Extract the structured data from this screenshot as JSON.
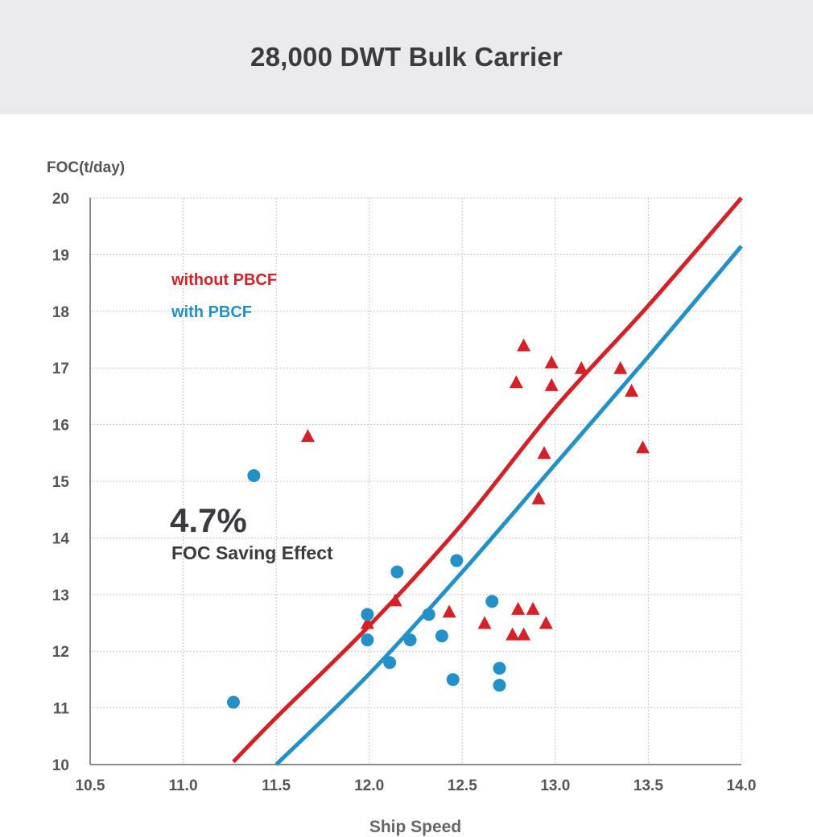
{
  "title": "28,000 DWT Bulk Carrier",
  "chart_data": {
    "type": "scatter",
    "title": "28,000 DWT Bulk Carrier",
    "xlabel": "Ship Speed",
    "ylabel": "FOC(t/day)",
    "xlim": [
      10.5,
      14.0
    ],
    "ylim": [
      10,
      20
    ],
    "x_ticks": [
      "10.5",
      "11.0",
      "11.5",
      "12.0",
      "12.5",
      "13.0",
      "13.5",
      "14.0"
    ],
    "y_ticks": [
      "10",
      "11",
      "12",
      "13",
      "14",
      "15",
      "16",
      "17",
      "18",
      "19",
      "20"
    ],
    "grid": true,
    "legend_position": "top-left",
    "series": [
      {
        "name": "without PBCF",
        "color": "#d42027",
        "marker": "triangle",
        "points": [
          [
            11.67,
            15.8
          ],
          [
            11.99,
            12.5
          ],
          [
            12.14,
            12.9
          ],
          [
            12.43,
            12.7
          ],
          [
            12.62,
            12.5
          ],
          [
            12.77,
            12.3
          ],
          [
            12.79,
            16.75
          ],
          [
            12.8,
            12.75
          ],
          [
            12.83,
            12.3
          ],
          [
            12.83,
            17.4
          ],
          [
            12.88,
            12.75
          ],
          [
            12.91,
            14.7
          ],
          [
            12.94,
            15.5
          ],
          [
            12.95,
            12.5
          ],
          [
            12.98,
            17.1
          ],
          [
            12.98,
            16.7
          ],
          [
            13.14,
            17.0
          ],
          [
            13.35,
            17.0
          ],
          [
            13.41,
            16.6
          ],
          [
            13.47,
            15.6
          ]
        ],
        "fit_curve": [
          [
            11.27,
            10.05
          ],
          [
            11.5,
            10.83
          ],
          [
            12.0,
            12.45
          ],
          [
            12.5,
            14.25
          ],
          [
            13.0,
            16.3
          ],
          [
            13.5,
            18.1
          ],
          [
            14.0,
            20.0
          ]
        ]
      },
      {
        "name": "with PBCF",
        "color": "#2590c8",
        "marker": "circle",
        "points": [
          [
            11.27,
            11.1
          ],
          [
            11.38,
            15.1
          ],
          [
            11.99,
            12.65
          ],
          [
            11.99,
            12.2
          ],
          [
            12.11,
            11.8
          ],
          [
            12.15,
            13.4
          ],
          [
            12.22,
            12.2
          ],
          [
            12.32,
            12.65
          ],
          [
            12.39,
            12.27
          ],
          [
            12.45,
            11.5
          ],
          [
            12.47,
            13.6
          ],
          [
            12.66,
            12.88
          ],
          [
            12.7,
            11.7
          ],
          [
            12.7,
            11.4
          ]
        ],
        "fit_curve": [
          [
            11.5,
            10.0
          ],
          [
            12.0,
            11.6
          ],
          [
            12.5,
            13.4
          ],
          [
            13.0,
            15.3
          ],
          [
            13.5,
            17.2
          ],
          [
            14.0,
            19.15
          ]
        ]
      }
    ],
    "annotation": {
      "value": "4.7%",
      "label": "FOC Saving Effect"
    }
  }
}
